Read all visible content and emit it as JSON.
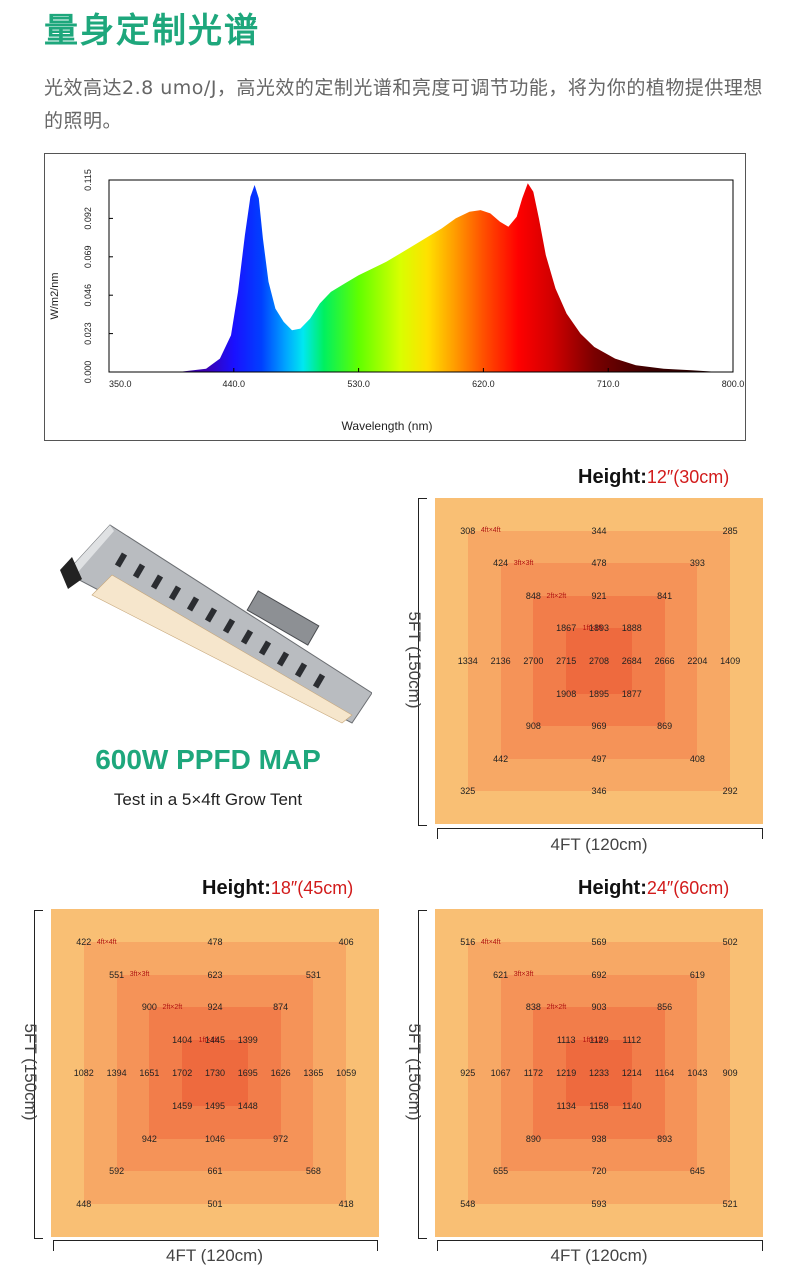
{
  "title": "量身定制光谱",
  "description": "光效高达2.8 umo/J，高光效的定制光谱和亮度可调节功能，将为你的植物提供理想的照明。",
  "chart_data": [
    {
      "type": "area",
      "title": "",
      "xlabel": "Wavelength (nm)",
      "ylabel": "W/m2/nm",
      "xlim": [
        350,
        800
      ],
      "ylim": [
        0,
        0.115
      ],
      "x_ticks": [
        "350.0",
        "440.0",
        "530.0",
        "620.0",
        "710.0",
        "800.0"
      ],
      "y_ticks": [
        "0.000",
        "0.023",
        "0.046",
        "0.069",
        "0.092",
        "0.115"
      ],
      "series": [
        {
          "name": "spectrum",
          "x": [
            350,
            400,
            420,
            430,
            438,
            443,
            448,
            452,
            455,
            458,
            461,
            465,
            470,
            476,
            482,
            488,
            495,
            502,
            510,
            520,
            530,
            540,
            550,
            560,
            570,
            580,
            590,
            600,
            610,
            618,
            625,
            632,
            638,
            644,
            648,
            652,
            656,
            660,
            665,
            672,
            680,
            690,
            700,
            715,
            730,
            750,
            770,
            790,
            800
          ],
          "values": [
            0,
            0,
            0.002,
            0.008,
            0.022,
            0.048,
            0.082,
            0.105,
            0.112,
            0.104,
            0.08,
            0.054,
            0.038,
            0.03,
            0.025,
            0.026,
            0.032,
            0.041,
            0.048,
            0.053,
            0.058,
            0.062,
            0.066,
            0.071,
            0.076,
            0.081,
            0.086,
            0.092,
            0.096,
            0.097,
            0.095,
            0.09,
            0.087,
            0.093,
            0.104,
            0.113,
            0.108,
            0.092,
            0.07,
            0.05,
            0.035,
            0.023,
            0.015,
            0.008,
            0.004,
            0.002,
            0.001,
            0,
            0
          ]
        }
      ]
    },
    {
      "type": "heatmap",
      "title": "Height: 12″(30cm)",
      "xlabel": "4FT (120cm)",
      "ylabel": "5FT (150cm)",
      "rows": [
        [
          "308",
          "",
          "",
          "",
          "344",
          "",
          "",
          "",
          "285"
        ],
        [
          "",
          "424",
          "",
          "",
          "478",
          "",
          "",
          "393",
          ""
        ],
        [
          "",
          "",
          "848",
          "",
          "921",
          "",
          "841",
          "",
          ""
        ],
        [
          "",
          "",
          "",
          "1867",
          "1893",
          "1888",
          "",
          "",
          ""
        ],
        [
          "1334",
          "2136",
          "2700",
          "2715",
          "2708",
          "2684",
          "2666",
          "2204",
          "1409"
        ],
        [
          "",
          "",
          "",
          "1908",
          "1895",
          "1877",
          "",
          "",
          ""
        ],
        [
          "",
          "",
          "908",
          "",
          "969",
          "",
          "869",
          "",
          ""
        ],
        [
          "",
          "442",
          "",
          "",
          "497",
          "",
          "",
          "408",
          ""
        ],
        [
          "325",
          "",
          "",
          "",
          "346",
          "",
          "",
          "",
          "292"
        ]
      ]
    },
    {
      "type": "heatmap",
      "title": "Height: 18″(45cm)",
      "xlabel": "4FT (120cm)",
      "ylabel": "5FT (150cm)",
      "rows": [
        [
          "422",
          "",
          "",
          "",
          "478",
          "",
          "",
          "",
          "406"
        ],
        [
          "",
          "551",
          "",
          "",
          "623",
          "",
          "",
          "531",
          ""
        ],
        [
          "",
          "",
          "900",
          "",
          "924",
          "",
          "874",
          "",
          ""
        ],
        [
          "",
          "",
          "",
          "1404",
          "1445",
          "1399",
          "",
          "",
          ""
        ],
        [
          "1082",
          "1394",
          "1651",
          "1702",
          "1730",
          "1695",
          "1626",
          "1365",
          "1059"
        ],
        [
          "",
          "",
          "",
          "1459",
          "1495",
          "1448",
          "",
          "",
          ""
        ],
        [
          "",
          "",
          "942",
          "",
          "1046",
          "",
          "972",
          "",
          ""
        ],
        [
          "",
          "592",
          "",
          "",
          "661",
          "",
          "",
          "568",
          ""
        ],
        [
          "448",
          "",
          "",
          "",
          "501",
          "",
          "",
          "",
          "418"
        ]
      ]
    },
    {
      "type": "heatmap",
      "title": "Height: 24″(60cm)",
      "xlabel": "4FT (120cm)",
      "ylabel": "5FT (150cm)",
      "rows": [
        [
          "516",
          "",
          "",
          "",
          "569",
          "",
          "",
          "",
          "502"
        ],
        [
          "",
          "621",
          "",
          "",
          "692",
          "",
          "",
          "619",
          ""
        ],
        [
          "",
          "",
          "838",
          "",
          "903",
          "",
          "856",
          "",
          ""
        ],
        [
          "",
          "",
          "",
          "1113",
          "1129",
          "1112",
          "",
          "",
          ""
        ],
        [
          "925",
          "1067",
          "1172",
          "1219",
          "1233",
          "1214",
          "1164",
          "1043",
          "909"
        ],
        [
          "",
          "",
          "",
          "1134",
          "1158",
          "1140",
          "",
          "",
          ""
        ],
        [
          "",
          "",
          "890",
          "",
          "938",
          "",
          "893",
          "",
          ""
        ],
        [
          "",
          "655",
          "",
          "",
          "720",
          "",
          "",
          "645",
          ""
        ],
        [
          "548",
          "",
          "",
          "",
          "593",
          "",
          "",
          "",
          "521"
        ]
      ]
    }
  ],
  "maps": [
    {
      "height_label": "Height:",
      "height_value": "12″(30cm)",
      "side_label": "5FT (150cm)",
      "bottom_label": "4FT (120cm)"
    },
    {
      "height_label": "Height:",
      "height_value": "18″(45cm)",
      "side_label": "5FT (150cm)",
      "bottom_label": "4FT (120cm)"
    },
    {
      "height_label": "Height:",
      "height_value": "24″(60cm)",
      "side_label": "5FT (150cm)",
      "bottom_label": "4FT (120cm)"
    }
  ],
  "zone_tags": [
    "4ft×4ft",
    "3ft×3ft",
    "2ft×2ft",
    "1ft×1ft"
  ],
  "ppfd_title": "600W PPFD MAP",
  "ppfd_subtitle": "Test in a 5×4ft Grow Tent",
  "ring_colors": [
    "#f9bf74",
    "#f7a865",
    "#f59358",
    "#f27d4a",
    "#ee6a3e"
  ],
  "accent_color": "#1ea77c"
}
